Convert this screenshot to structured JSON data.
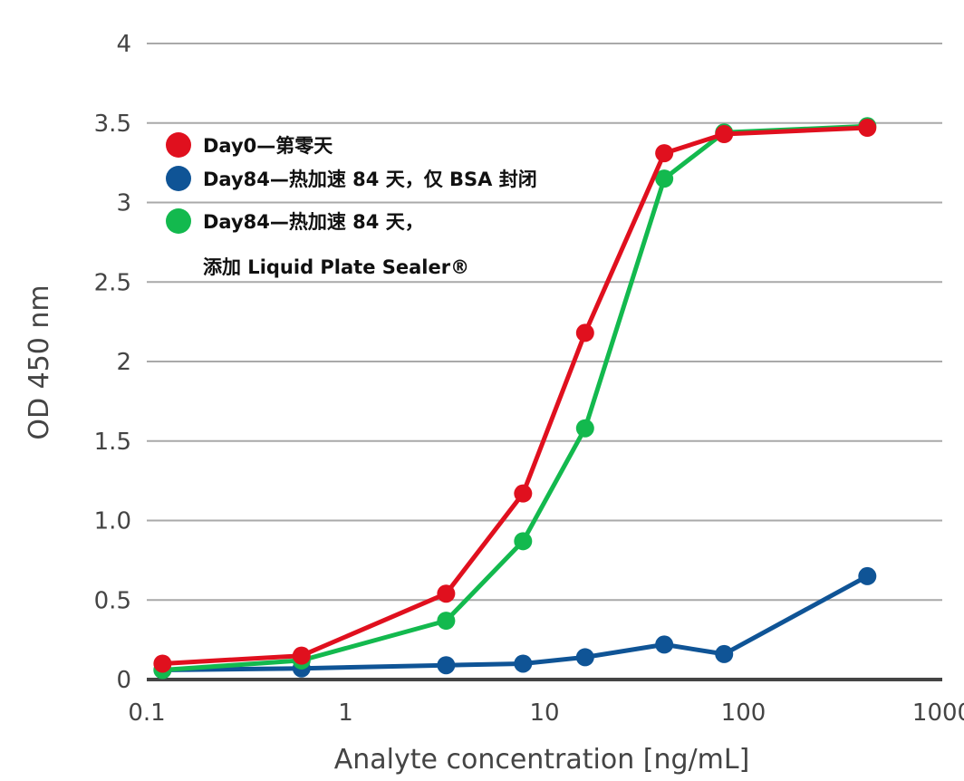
{
  "chart_data": {
    "type": "line",
    "xlabel": "Analyte concentration [ng/mL]",
    "ylabel": "OD 450 nm",
    "x_scale": "log",
    "xlim": [
      0.1,
      1000
    ],
    "ylim": [
      0,
      4
    ],
    "x_tick_labels": [
      "0.1",
      "1",
      "10",
      "100",
      "1000"
    ],
    "y_tick_labels": [
      "0",
      "0.5",
      "1.0",
      "1.5",
      "2",
      "2.5",
      "3",
      "3.5",
      "4"
    ],
    "grid": "horizontal",
    "legend_position": "top-left",
    "x": [
      0.12,
      0.6,
      3.2,
      7.8,
      16,
      40,
      80,
      420
    ],
    "series": [
      {
        "name": "Day0—第零天",
        "color": "#e0101e",
        "values": [
          0.1,
          0.15,
          0.54,
          1.17,
          2.18,
          3.31,
          3.43,
          3.47
        ]
      },
      {
        "name": "Day84—热加速 84 天，仅 BSA 封闭",
        "color": "#0f5496",
        "values": [
          0.06,
          0.07,
          0.09,
          0.1,
          0.14,
          0.22,
          0.16,
          0.65
        ]
      },
      {
        "name": "Day84—热加速 84 天，",
        "name_line2": "添加 Liquid Plate Sealer®",
        "color": "#13b94e",
        "values": [
          0.06,
          0.12,
          0.37,
          0.87,
          1.58,
          3.15,
          3.44,
          3.48
        ]
      }
    ]
  }
}
